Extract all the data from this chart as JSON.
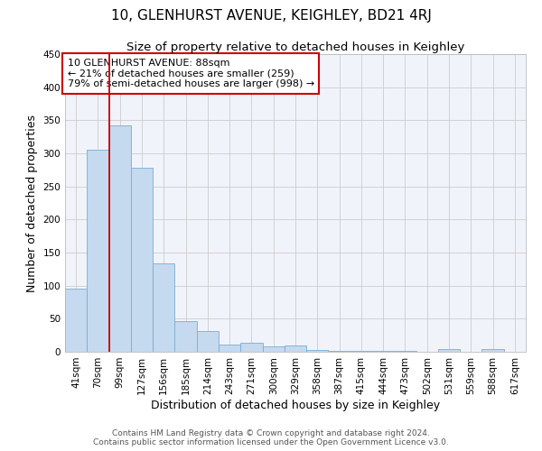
{
  "title": "10, GLENHURST AVENUE, KEIGHLEY, BD21 4RJ",
  "subtitle": "Size of property relative to detached houses in Keighley",
  "xlabel": "Distribution of detached houses by size in Keighley",
  "ylabel": "Number of detached properties",
  "categories": [
    "41sqm",
    "70sqm",
    "99sqm",
    "127sqm",
    "156sqm",
    "185sqm",
    "214sqm",
    "243sqm",
    "271sqm",
    "300sqm",
    "329sqm",
    "358sqm",
    "387sqm",
    "415sqm",
    "444sqm",
    "473sqm",
    "502sqm",
    "531sqm",
    "559sqm",
    "588sqm",
    "617sqm"
  ],
  "values": [
    95,
    305,
    342,
    278,
    134,
    47,
    31,
    11,
    13,
    8,
    10,
    3,
    1,
    2,
    1,
    1,
    0,
    4,
    0,
    4,
    0
  ],
  "bar_color": "#c5d9ef",
  "bar_edge_color": "#7aadd4",
  "grid_color": "#cccccc",
  "vline_x": 1.5,
  "vline_color": "#cc0000",
  "annotation_line1": "10 GLENHURST AVENUE: 88sqm",
  "annotation_line2": "← 21% of detached houses are smaller (259)",
  "annotation_line3": "79% of semi-detached houses are larger (998) →",
  "annotation_box_color": "#cc0000",
  "ylim": [
    0,
    450
  ],
  "yticks": [
    0,
    50,
    100,
    150,
    200,
    250,
    300,
    350,
    400,
    450
  ],
  "footnote": "Contains HM Land Registry data © Crown copyright and database right 2024.\nContains public sector information licensed under the Open Government Licence v3.0.",
  "title_fontsize": 11,
  "subtitle_fontsize": 9.5,
  "label_fontsize": 9,
  "tick_fontsize": 7.5,
  "annotation_fontsize": 8,
  "footnote_fontsize": 6.5
}
